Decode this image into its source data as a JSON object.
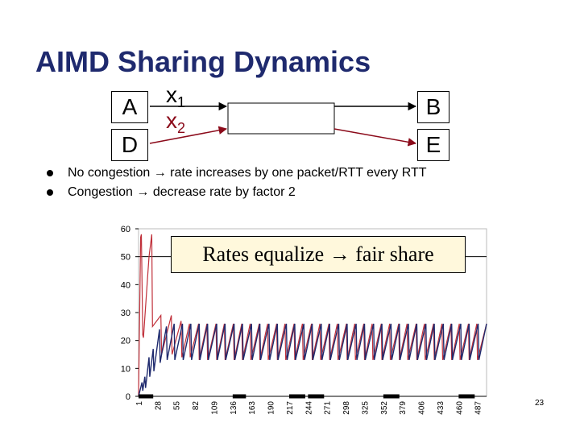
{
  "slide": {
    "title": "AIMD Sharing Dynamics",
    "page_number": "23"
  },
  "network": {
    "nodes": {
      "A": "A",
      "D": "D",
      "B": "B",
      "E": "E"
    },
    "flows": {
      "x1": {
        "base": "x",
        "sub": "1",
        "color": "#000000"
      },
      "x2": {
        "base": "x",
        "sub": "2",
        "color": "#8b0a1a"
      }
    }
  },
  "bullets": [
    {
      "before": "No congestion ",
      "arrow": "→",
      "after": " rate increases by one packet/RTT every RTT"
    },
    {
      "before": "Congestion ",
      "arrow": "→",
      "after": " decrease rate by factor 2"
    }
  ],
  "callout": {
    "before": "Rates equalize ",
    "arrow": "→",
    "after": " fair share"
  },
  "chart_data": {
    "type": "line",
    "ylim": [
      0,
      60
    ],
    "y_ticks": [
      "0",
      "10",
      "20",
      "30",
      "40",
      "50",
      "60"
    ],
    "x_tick_labels": [
      "1",
      "28",
      "55",
      "82",
      "109",
      "136",
      "163",
      "190",
      "217",
      "244",
      "271",
      "298",
      "325",
      "352",
      "379",
      "406",
      "433",
      "460",
      "487"
    ],
    "xlim": [
      1,
      500
    ],
    "reference_line": 50,
    "series": [
      {
        "color": "#c0303a",
        "x": [
          1,
          4,
          5,
          7,
          8,
          14,
          16,
          20,
          21,
          33,
          34,
          48,
          49,
          62,
          63,
          74,
          75,
          87,
          88,
          99,
          100,
          112,
          113,
          124,
          125,
          137,
          138,
          149,
          150,
          161,
          162,
          174,
          175,
          186,
          187,
          199,
          200,
          211,
          212,
          224,
          225,
          236,
          237,
          249,
          250,
          261,
          262,
          274,
          275,
          286,
          287,
          299,
          300,
          311,
          312,
          324,
          325,
          336,
          337,
          349,
          350,
          361,
          362,
          374,
          375,
          386,
          387,
          399,
          400,
          411,
          412,
          424,
          425,
          436,
          437,
          449,
          450,
          461,
          462,
          474,
          475,
          486,
          487,
          500
        ],
        "y": [
          0,
          57,
          58,
          22,
          21,
          43,
          50,
          58,
          25,
          29,
          15,
          29,
          15,
          27,
          14,
          26,
          14,
          26,
          13,
          26,
          13,
          26,
          13,
          26,
          13,
          26,
          13,
          26,
          13,
          26,
          13,
          26,
          13,
          26,
          13,
          26,
          13,
          26,
          13,
          26,
          13,
          26,
          13,
          26,
          13,
          26,
          13,
          26,
          13,
          26,
          13,
          26,
          13,
          26,
          13,
          26,
          13,
          26,
          13,
          26,
          13,
          26,
          13,
          26,
          13,
          26,
          13,
          26,
          13,
          26,
          13,
          26,
          13,
          26,
          13,
          26,
          13,
          26,
          13,
          26,
          13,
          26,
          13,
          26
        ]
      },
      {
        "color": "#1f2a6e",
        "x": [
          1,
          6,
          7,
          10,
          11,
          16,
          17,
          22,
          23,
          31,
          32,
          41,
          42,
          52,
          53,
          64,
          65,
          76,
          77,
          88,
          89,
          100,
          101,
          113,
          114,
          125,
          126,
          138,
          139,
          150,
          151,
          163,
          164,
          175,
          176,
          188,
          189,
          200,
          201,
          213,
          214,
          225,
          226,
          238,
          239,
          250,
          251,
          263,
          264,
          275,
          276,
          288,
          289,
          300,
          301,
          313,
          314,
          325,
          326,
          338,
          339,
          350,
          351,
          363,
          364,
          375,
          376,
          388,
          389,
          400,
          401,
          413,
          414,
          425,
          426,
          438,
          439,
          450,
          451,
          463,
          464,
          475,
          476,
          488,
          489,
          500
        ],
        "y": [
          0,
          5,
          2,
          7,
          3,
          14,
          7,
          17,
          9,
          24,
          12,
          25,
          13,
          26,
          13,
          26,
          13,
          26,
          13,
          26,
          13,
          26,
          13,
          26,
          13,
          26,
          13,
          26,
          13,
          26,
          13,
          26,
          13,
          26,
          13,
          26,
          13,
          26,
          13,
          26,
          13,
          26,
          13,
          26,
          13,
          26,
          13,
          26,
          13,
          26,
          13,
          26,
          13,
          26,
          13,
          26,
          13,
          26,
          13,
          26,
          13,
          26,
          13,
          26,
          13,
          26,
          13,
          26,
          13,
          26,
          13,
          26,
          13,
          26,
          13,
          26,
          13,
          26,
          13,
          26,
          13,
          26,
          13,
          26,
          13,
          26
        ]
      }
    ],
    "x_axis_markers": [
      [
        1,
        22
      ],
      [
        136,
        155
      ],
      [
        217,
        240
      ],
      [
        244,
        267
      ],
      [
        352,
        375
      ],
      [
        460,
        483
      ]
    ]
  }
}
